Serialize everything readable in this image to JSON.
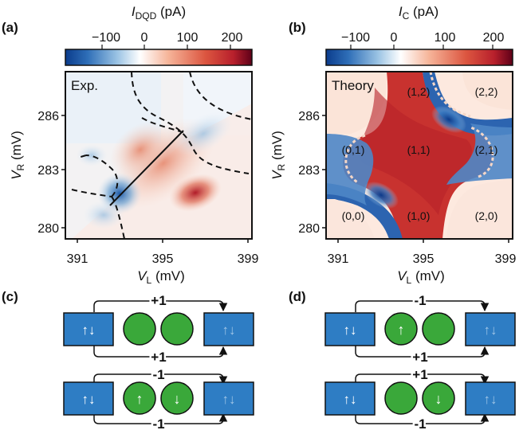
{
  "figure": {
    "panels": {
      "a": {
        "tag": "(a)",
        "colorbar_label_main": "I",
        "colorbar_label_sub": "DQD",
        "colorbar_label_unit": " (pA)",
        "colorbar_ticks": [
          "−100",
          "0",
          "100",
          "200"
        ],
        "corner_label": "Exp.",
        "xlabel_main": "V",
        "xlabel_sub": "L",
        "xlabel_unit": " (mV)",
        "ylabel_main": "V",
        "ylabel_sub": "R",
        "ylabel_unit": " (mV)",
        "xticks": [
          "391",
          "395",
          "399"
        ],
        "yticks": [
          "280",
          "283",
          "286"
        ]
      },
      "b": {
        "tag": "(b)",
        "colorbar_label_main": "I",
        "colorbar_label_sub": "C",
        "colorbar_label_unit": " (pA)",
        "colorbar_ticks": [
          "−100",
          "0",
          "100",
          "200"
        ],
        "corner_label": "Theory",
        "xlabel_main": "V",
        "xlabel_sub": "L",
        "xlabel_unit": " (mV)",
        "ylabel_main": "V",
        "ylabel_sub": "R",
        "ylabel_unit": " (mV)",
        "xticks": [
          "391",
          "395",
          "399"
        ],
        "yticks": [
          "280",
          "283",
          "286"
        ],
        "charge_states": [
          "(1,2)",
          "(2,2)",
          "(0,1)",
          "(1,1)",
          "(2,1)",
          "(0,0)",
          "(1,0)",
          "(2,0)"
        ]
      },
      "c": {
        "tag": "(c)",
        "top_diagram": {
          "upper_label": "+1",
          "lower_label": "+1"
        },
        "bottom_diagram": {
          "upper_label": "-1",
          "lower_label": "-1"
        }
      },
      "d": {
        "tag": "(d)",
        "top_diagram": {
          "upper_label": "-1",
          "lower_label": "+1"
        },
        "bottom_diagram": {
          "upper_label": "+1",
          "lower_label": "-1"
        }
      }
    },
    "colors": {
      "colormap_negative": "#1f4e9c",
      "colormap_zero": "#ffffff",
      "colormap_positive": "#cc2b2b",
      "colormap_max": "#6a0018",
      "lead": "#2e7dc4",
      "dot": "#3aa83a"
    },
    "icons": [
      "spin-pair-icon",
      "spin-up-icon",
      "spin-down-icon"
    ]
  }
}
